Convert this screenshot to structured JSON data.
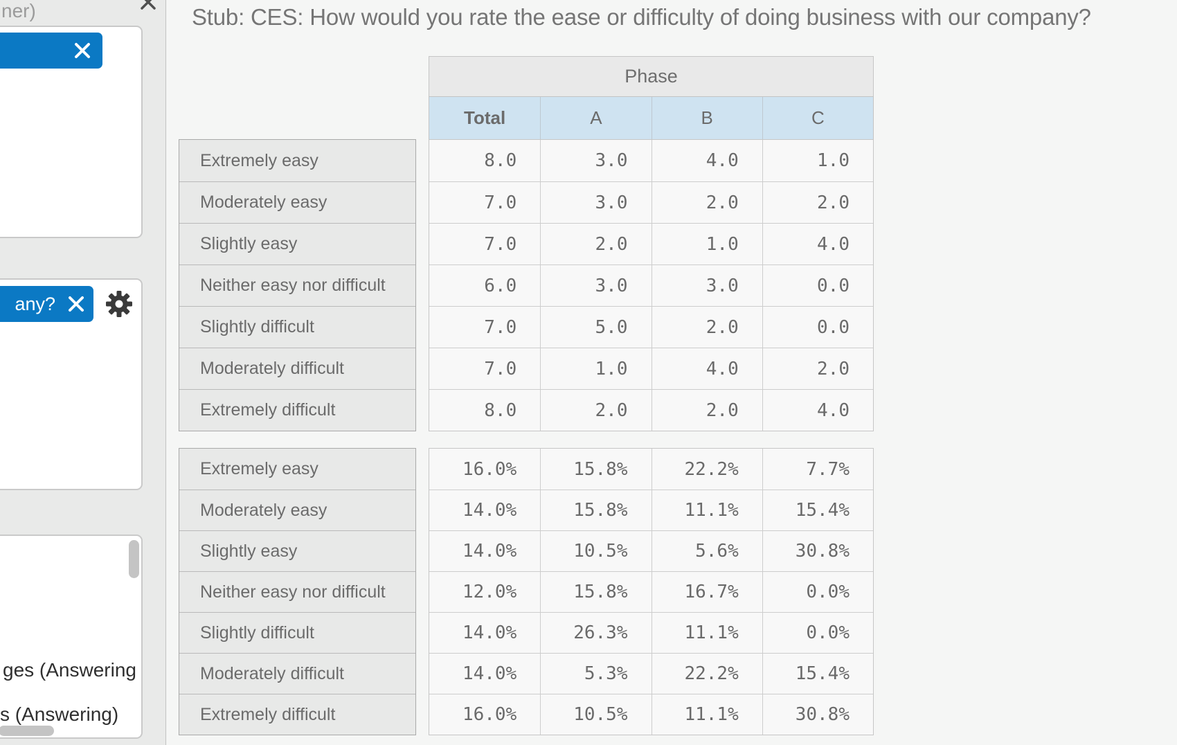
{
  "sidebar": {
    "truncated_title": "ner)",
    "chip2_label": "any?",
    "list_items": [
      "ges (Answering",
      "s (Answering)"
    ],
    "icons": {
      "panel_close": "x-mark",
      "chip_close": "x-mark",
      "settings": "gear"
    }
  },
  "main": {
    "stub_title": "Stub: CES: How would you rate the ease or difficulty of doing business with our company?",
    "table": {
      "banner_label": "Phase",
      "column_headers": [
        "Total",
        "A",
        "B",
        "C"
      ],
      "row_labels": [
        "Extremely easy",
        "Moderately easy",
        "Slightly easy",
        "Neither easy nor difficult",
        "Slightly difficult",
        "Moderately difficult",
        "Extremely difficult"
      ],
      "counts": [
        [
          "8.0",
          "3.0",
          "4.0",
          "1.0"
        ],
        [
          "7.0",
          "3.0",
          "2.0",
          "2.0"
        ],
        [
          "7.0",
          "2.0",
          "1.0",
          "4.0"
        ],
        [
          "6.0",
          "3.0",
          "3.0",
          "0.0"
        ],
        [
          "7.0",
          "5.0",
          "2.0",
          "0.0"
        ],
        [
          "7.0",
          "1.0",
          "4.0",
          "2.0"
        ],
        [
          "8.0",
          "2.0",
          "2.0",
          "4.0"
        ]
      ],
      "percents": [
        [
          "16.0%",
          "15.8%",
          "22.2%",
          "7.7%"
        ],
        [
          "14.0%",
          "15.8%",
          "11.1%",
          "15.4%"
        ],
        [
          "14.0%",
          "10.5%",
          "5.6%",
          "30.8%"
        ],
        [
          "12.0%",
          "15.8%",
          "16.7%",
          "0.0%"
        ],
        [
          "14.0%",
          "26.3%",
          "11.1%",
          "0.0%"
        ],
        [
          "14.0%",
          "5.3%",
          "22.2%",
          "15.4%"
        ],
        [
          "16.0%",
          "10.5%",
          "11.1%",
          "30.8%"
        ]
      ]
    }
  },
  "colors": {
    "accent_blue": "#0b79c4",
    "header_blue": "#cfe3f1",
    "sidebar_bg": "#e9eae9",
    "main_bg": "#f5f6f5",
    "label_cell_bg": "#e8e9e8",
    "value_cell_bg": "#f8f8f8"
  }
}
